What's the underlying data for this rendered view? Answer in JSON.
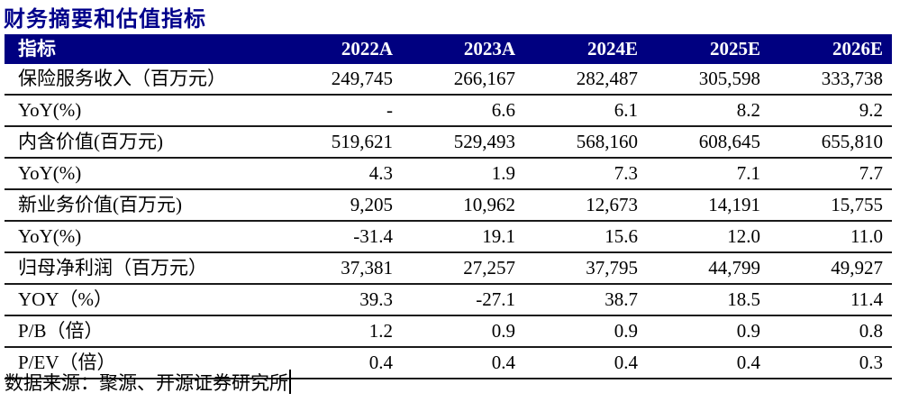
{
  "title": "财务摘要和估值指标",
  "colors": {
    "header_bg": "#000080",
    "title": "#00008B",
    "row_line": "#1a1a1a",
    "header_text": "#ffffff",
    "body_text": "#000000"
  },
  "table": {
    "header": [
      "指标",
      "2022A",
      "2023A",
      "2024E",
      "2025E",
      "2026E"
    ],
    "rows": [
      {
        "label": "保险服务收入（百万元）",
        "values": [
          "249,745",
          "266,167",
          "282,487",
          "305,598",
          "333,738"
        ]
      },
      {
        "label": "YoY(%)",
        "values": [
          "-",
          "6.6",
          "6.1",
          "8.2",
          "9.2"
        ]
      },
      {
        "label": "内含价值(百万元)",
        "values": [
          "519,621",
          "529,493",
          "568,160",
          "608,645",
          "655,810"
        ]
      },
      {
        "label": "YoY(%)",
        "values": [
          "4.3",
          "1.9",
          "7.3",
          "7.1",
          "7.7"
        ]
      },
      {
        "label": "新业务价值(百万元)",
        "values": [
          "9,205",
          "10,962",
          "12,673",
          "14,191",
          "15,755"
        ]
      },
      {
        "label": "YoY(%)",
        "values": [
          "-31.4",
          "19.1",
          "15.6",
          "12.0",
          "11.0"
        ]
      },
      {
        "label": "归母净利润（百万元）",
        "values": [
          "37,381",
          "27,257",
          "37,795",
          "44,799",
          "49,927"
        ]
      },
      {
        "label": "YOY（%）",
        "values": [
          "39.3",
          "-27.1",
          "38.7",
          "18.5",
          "11.4"
        ]
      },
      {
        "label": "P/B（倍）",
        "values": [
          "1.2",
          "0.9",
          "0.9",
          "0.9",
          "0.8"
        ]
      },
      {
        "label": "P/EV（倍）",
        "values": [
          "0.4",
          "0.4",
          "0.4",
          "0.4",
          "0.3"
        ]
      }
    ]
  },
  "footer": {
    "source_text": "数据来源：聚源、开源证券研究所",
    "cursor_visible": true
  }
}
